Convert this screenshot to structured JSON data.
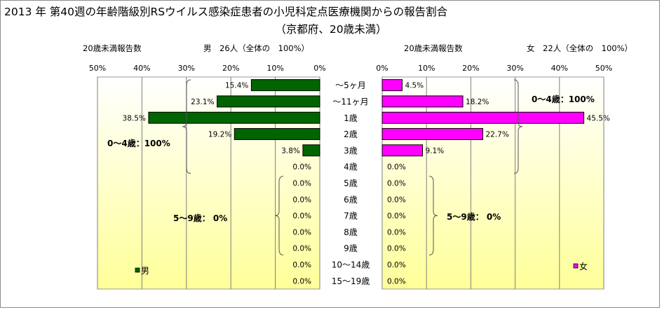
{
  "title": "2013 年 第40週の年齢階級別RSウイルス感染症患者の小児科定点医療機関からの報告割合",
  "subtitle": "（京都府、20歳未満）",
  "chart_data": {
    "type": "bar",
    "categories": [
      "～5ヶ月",
      "～11ヶ月",
      "1歳",
      "2歳",
      "3歳",
      "4歳",
      "5歳",
      "6歳",
      "7歳",
      "8歳",
      "9歳",
      "10～14歳",
      "15～19歳"
    ],
    "xlim": [
      0,
      50
    ],
    "xticks": [
      "0%",
      "10%",
      "20%",
      "30%",
      "40%",
      "50%"
    ],
    "colors": {
      "male": "#006400",
      "female": "#ff00ff",
      "grid": "#7f7f7f",
      "bg_top": "#ffffff",
      "bg_bottom": "#ffff99"
    },
    "series": [
      {
        "name": "男",
        "side": "left",
        "header_left": "20歳未満報告数",
        "header_right": "男　26人（全体の　100%）",
        "values": [
          15.4,
          23.1,
          38.5,
          19.2,
          3.8,
          0,
          0,
          0,
          0,
          0,
          0,
          0,
          0
        ],
        "labels": [
          "15.4%",
          "23.1%",
          "38.5%",
          "19.2%",
          "3.8%",
          "0.0%",
          "0.0%",
          "0.0%",
          "0.0%",
          "0.0%",
          "0.0%",
          "0.0%",
          "0.0%"
        ],
        "annotations": [
          "0～4歳：100%",
          "5～9歳：  0%"
        ]
      },
      {
        "name": "女",
        "side": "right",
        "header_left": "20歳未満報告数",
        "header_right": "女　22人（全体の　100%）",
        "values": [
          4.5,
          18.2,
          45.5,
          22.7,
          9.1,
          0,
          0,
          0,
          0,
          0,
          0,
          0,
          0
        ],
        "labels": [
          "4.5%",
          "18.2%",
          "45.5%",
          "22.7%",
          "9.1%",
          "0.0%",
          "0.0%",
          "0.0%",
          "0.0%",
          "0.0%",
          "0.0%",
          "0.0%",
          "0.0%"
        ],
        "annotations": [
          "0～4歳：100%",
          "5～9歳：  0%"
        ]
      }
    ]
  }
}
